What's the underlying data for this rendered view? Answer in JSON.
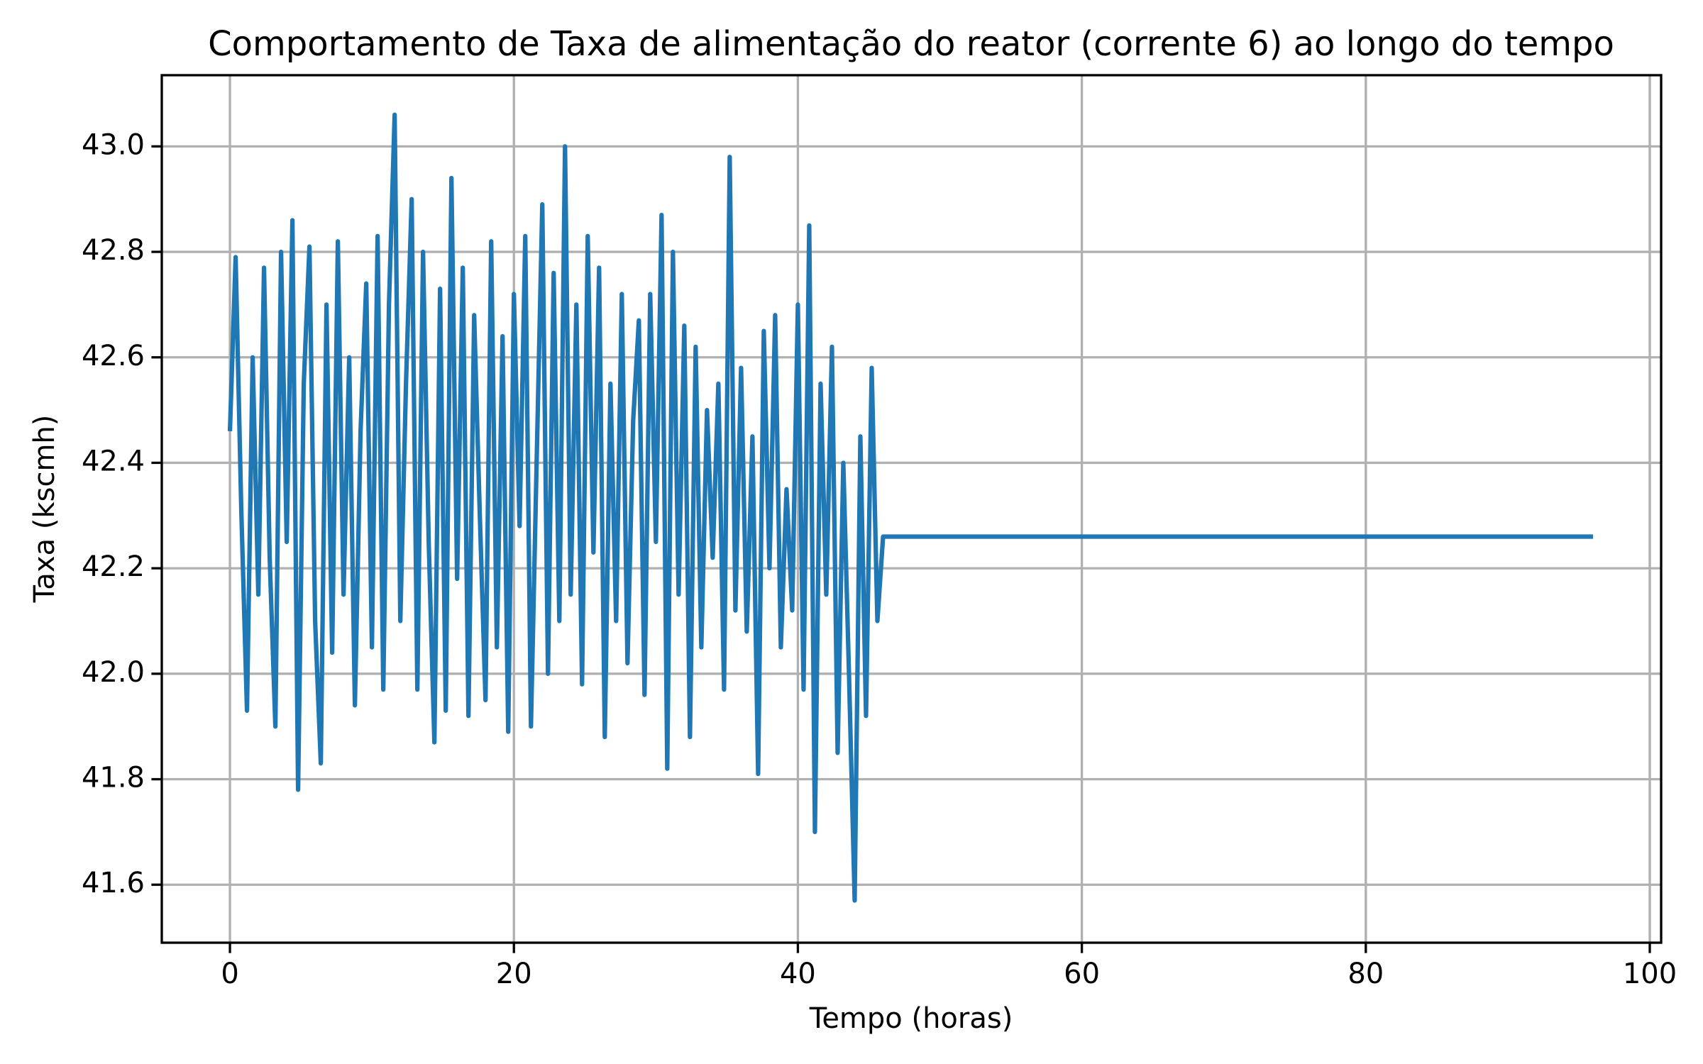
{
  "chart_data": {
    "type": "line",
    "title": "Comportamento de Taxa de alimentação do reator (corrente 6) ao longo do tempo",
    "xlabel": "Tempo (horas)",
    "ylabel": "Taxa (kscmh)",
    "x": [
      0,
      0.4,
      0.8,
      1.2,
      1.6,
      2,
      2.4,
      2.8,
      3.2,
      3.6,
      4,
      4.4,
      4.8,
      5.2,
      5.6,
      6,
      6.4,
      6.8,
      7.2,
      7.6,
      8,
      8.4,
      8.8,
      9.2,
      9.6,
      10,
      10.4,
      10.8,
      11.2,
      11.6,
      12,
      12.4,
      12.8,
      13.2,
      13.6,
      14,
      14.4,
      14.8,
      15.2,
      15.6,
      16,
      16.4,
      16.8,
      17.2,
      17.6,
      18,
      18.4,
      18.8,
      19.2,
      19.6,
      20,
      20.4,
      20.8,
      21.2,
      21.6,
      22,
      22.4,
      22.8,
      23.2,
      23.6,
      24,
      24.4,
      24.8,
      25.2,
      25.6,
      26,
      26.4,
      26.8,
      27.2,
      27.6,
      28,
      28.4,
      28.8,
      29.2,
      29.6,
      30,
      30.4,
      30.8,
      31.2,
      31.6,
      32,
      32.4,
      32.8,
      33.2,
      33.6,
      34,
      34.4,
      34.8,
      35.2,
      35.6,
      36,
      36.4,
      36.8,
      37.2,
      37.6,
      38,
      38.4,
      38.8,
      39.2,
      39.6,
      40,
      40.4,
      40.8,
      41.2,
      41.6,
      42,
      42.4,
      42.8,
      43.2,
      43.6,
      44,
      44.4,
      44.8,
      45.2,
      45.6,
      46,
      96
    ],
    "series": [
      {
        "name": "Taxa",
        "color": "#1f77b4",
        "values": [
          42.46,
          42.79,
          42.31,
          41.93,
          42.6,
          42.15,
          42.77,
          42.22,
          41.9,
          42.8,
          42.25,
          42.86,
          41.78,
          42.55,
          42.81,
          42.1,
          41.83,
          42.7,
          42.04,
          42.82,
          42.15,
          42.6,
          41.94,
          42.46,
          42.74,
          42.05,
          42.83,
          41.97,
          42.7,
          43.06,
          42.1,
          42.55,
          42.9,
          41.97,
          42.8,
          42.25,
          41.87,
          42.73,
          41.93,
          42.94,
          42.18,
          42.77,
          41.92,
          42.68,
          42.3,
          41.95,
          42.82,
          42.05,
          42.64,
          41.89,
          42.72,
          42.28,
          42.83,
          41.9,
          42.4,
          42.89,
          42.0,
          42.76,
          42.1,
          43.0,
          42.15,
          42.7,
          41.98,
          42.83,
          42.23,
          42.77,
          41.88,
          42.55,
          42.1,
          42.72,
          42.02,
          42.48,
          42.67,
          41.96,
          42.72,
          42.25,
          42.87,
          41.82,
          42.8,
          42.15,
          42.66,
          41.88,
          42.62,
          42.05,
          42.5,
          42.22,
          42.55,
          41.97,
          42.98,
          42.12,
          42.58,
          42.08,
          42.45,
          41.81,
          42.65,
          42.2,
          42.68,
          42.05,
          42.35,
          42.12,
          42.7,
          41.97,
          42.85,
          41.7,
          42.55,
          42.15,
          42.62,
          41.85,
          42.4,
          42.0,
          41.57,
          42.45,
          41.92,
          42.58,
          42.1,
          42.26,
          42.26
        ]
      }
    ],
    "xlim": [
      -4.8,
      100.8
    ],
    "ylim": [
      41.49,
      43.135
    ],
    "xticks": [
      0,
      20,
      40,
      60,
      80,
      100
    ],
    "yticks": [
      41.6,
      41.8,
      {
        "value": 42.0,
        "label": "42.0"
      },
      42.2,
      42.4,
      42.6,
      42.8,
      {
        "value": 43.0,
        "label": "43.0"
      }
    ],
    "grid": true
  }
}
